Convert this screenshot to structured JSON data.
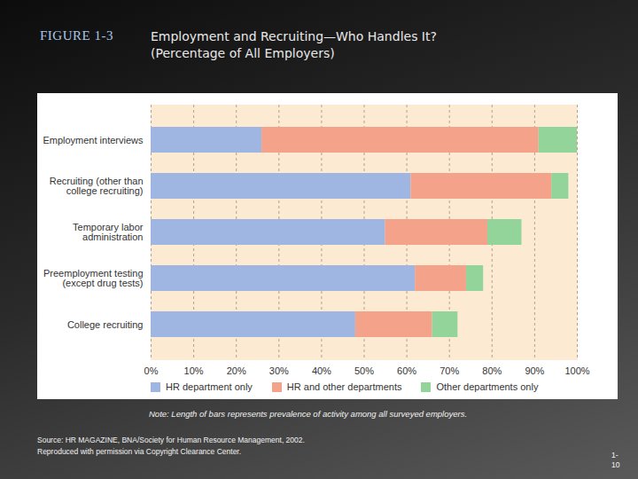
{
  "chart_data": {
    "type": "bar",
    "figure_label": "FIGURE 1-3",
    "title": "Employment and Recruiting—Who Handles It?",
    "subtitle": "(Percentage of All Employers)",
    "orientation": "horizontal",
    "stacked": true,
    "categories": [
      "Employment interviews",
      "Recruiting (other than\ncollege recruiting)",
      "Temporary labor\nadministration",
      "Preemployment testing\n(except drug tests)",
      "College recruiting"
    ],
    "series": [
      {
        "name": "HR department only",
        "color": "#9fb6e2",
        "values": [
          26,
          61,
          55,
          62,
          48
        ]
      },
      {
        "name": "HR and other departments",
        "color": "#f4a28a",
        "values": [
          65,
          33,
          24,
          12,
          18
        ]
      },
      {
        "name": "Other departments only",
        "color": "#93d49b",
        "values": [
          9,
          4,
          8,
          4,
          6
        ]
      }
    ],
    "xlim": [
      0,
      100
    ],
    "xticks": [
      {
        "value": 0,
        "label": "0%"
      },
      {
        "value": 10,
        "label": "10%"
      },
      {
        "value": 20,
        "label": "20%"
      },
      {
        "value": 30,
        "label": "30%"
      },
      {
        "value": 40,
        "label": "40%"
      },
      {
        "value": 50,
        "label": "50%"
      },
      {
        "value": 60,
        "label": "60%"
      },
      {
        "value": 70,
        "label": "70%"
      },
      {
        "value": 80,
        "label": "80%"
      },
      {
        "value": 90,
        "label": "90%"
      },
      {
        "value": 100,
        "label": "100%"
      }
    ],
    "grid": true,
    "legend": "bottom",
    "note": "Note: Length of bars represents prevalence of activity among all surveyed employers.",
    "source": "Source: HR MAGAZINE, BNA/Society for Human Resource Management, 2002.\nReproduced with permission via Copyright Clearance Center.",
    "page_number": "1-\n10"
  }
}
